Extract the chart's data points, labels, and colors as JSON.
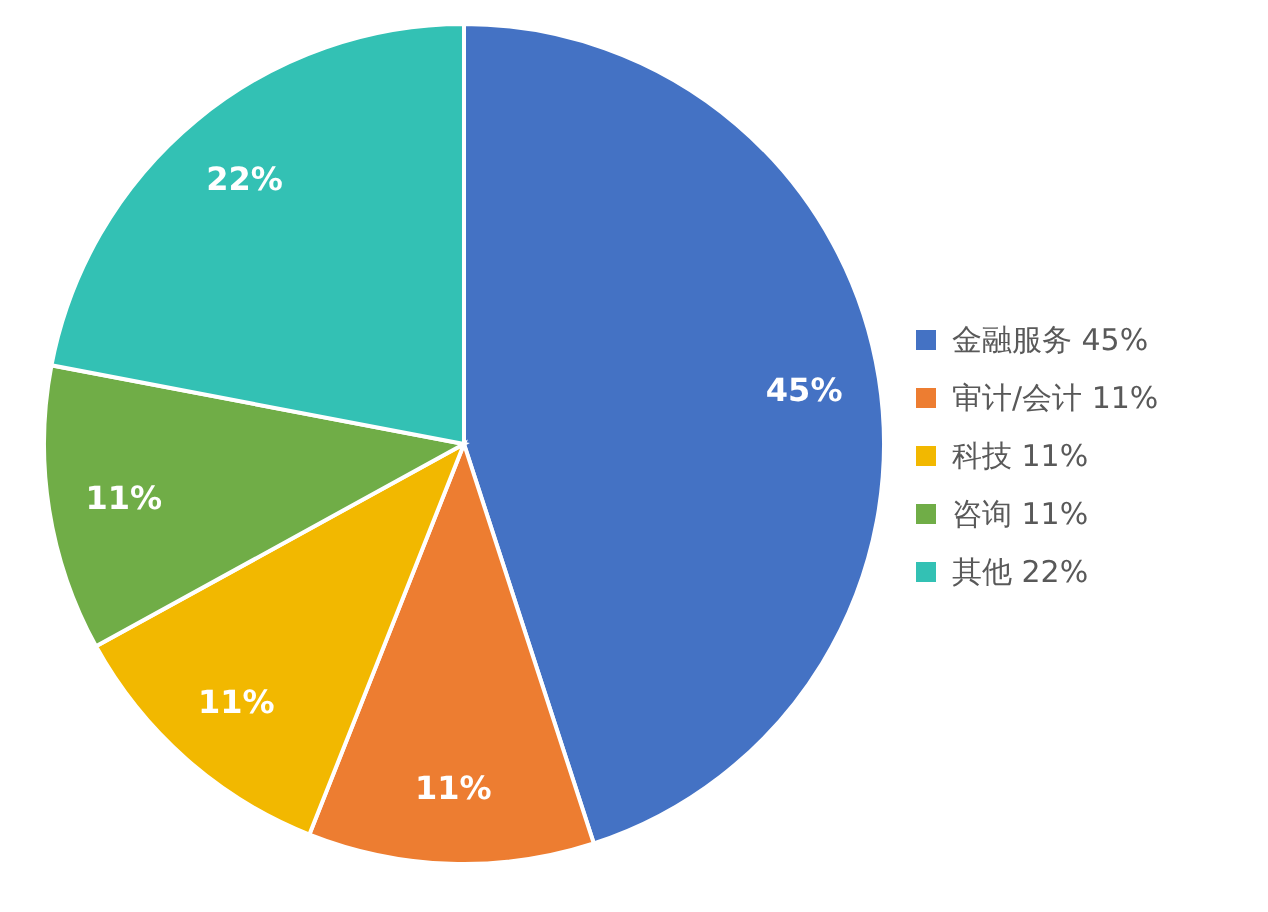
{
  "chart_data": {
    "type": "pie",
    "categories": [
      "金融服务",
      "审计/会计",
      "科技",
      "咨询",
      "其他"
    ],
    "values": [
      45,
      11,
      11,
      11,
      22
    ],
    "colors": [
      "#4472c4",
      "#ed7d31",
      "#f2b800",
      "#70ad47",
      "#33c1b4"
    ],
    "value_labels": [
      "45%",
      "11%",
      "11%",
      "11%",
      "22%"
    ],
    "legend": "right"
  }
}
